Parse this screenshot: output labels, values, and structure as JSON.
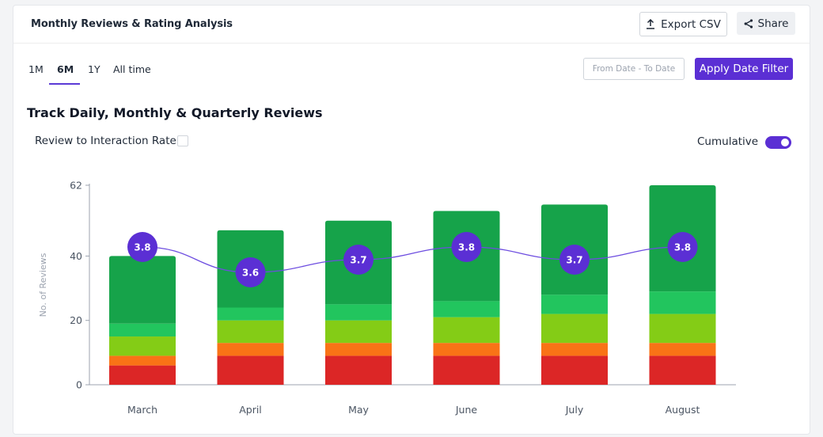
{
  "header": {
    "title": "Monthly Reviews & Rating Analysis",
    "export_label": "Export CSV",
    "share_label": "Share",
    "export_icon": "upload-icon",
    "share_icon": "share-icon"
  },
  "tabs": [
    {
      "label": "1M",
      "active": false
    },
    {
      "label": "6M",
      "active": true
    },
    {
      "label": "1Y",
      "active": false
    },
    {
      "label": "All time",
      "active": false
    }
  ],
  "date_filter": {
    "placeholder": "From Date - To Date",
    "apply_label": "Apply Date Filter"
  },
  "section": {
    "title": "Track Daily, Monthly & Quarterly Reviews",
    "rate_label": "Review to Interaction Rate",
    "rate_checked": false,
    "cumulative_label": "Cumulative",
    "cumulative_on": true
  },
  "colors": {
    "accent": "#5b2fd4",
    "rating_line": "#6d4de0",
    "rating_marker": "#5b2fd4"
  },
  "chart_data": {
    "type": "bar",
    "stacked": true,
    "categories": [
      "March",
      "April",
      "May",
      "June",
      "July",
      "August"
    ],
    "ylabel": "No. of Reviews",
    "ylim": [
      0,
      62
    ],
    "yticks": [
      0,
      20,
      40,
      62
    ],
    "grid": false,
    "series": [
      {
        "color": "#dc2626",
        "values": [
          6,
          9,
          9,
          9,
          9,
          9
        ]
      },
      {
        "color": "#f97316",
        "values": [
          3,
          4,
          4,
          4,
          4,
          4
        ]
      },
      {
        "color": "#84cc16",
        "values": [
          6,
          7,
          7,
          8,
          9,
          9
        ]
      },
      {
        "color": "#22c55e",
        "values": [
          4,
          4,
          5,
          5,
          6,
          7
        ]
      },
      {
        "color": "#16a34a",
        "values": [
          21,
          24,
          26,
          28,
          28,
          33
        ]
      }
    ],
    "rating_line": {
      "values": [
        3.8,
        3.6,
        3.7,
        3.8,
        3.7,
        3.8
      ],
      "labels": [
        "3.8",
        "3.6",
        "3.7",
        "3.8",
        "3.7",
        "3.8"
      ]
    }
  }
}
